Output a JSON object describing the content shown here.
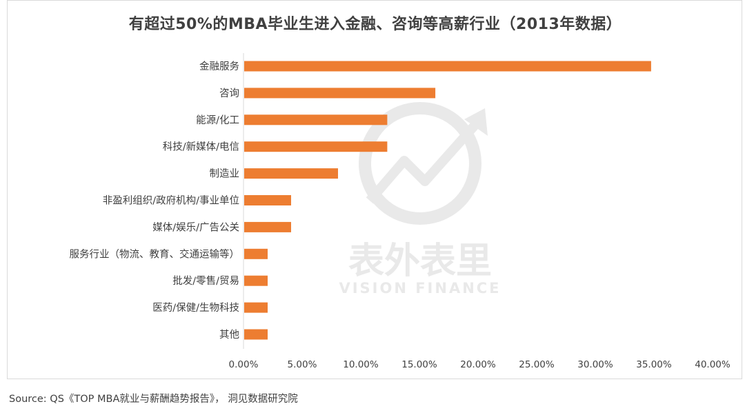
{
  "title": "有超过50%的MBA毕业生进入金融、咨询等高薪行业（2013年数据）",
  "source": "Source: QS《TOP MBA就业与薪酬趋势报告》， 洞见数据研究院",
  "watermark": {
    "main_text": "表外表里",
    "sub_text": "VISION FINANCE",
    "icon": "rising-arrow-logo-icon"
  },
  "colors": {
    "bar": "#ED7D31",
    "text": "#404040",
    "axis": "#d9d9d9",
    "watermark": "#e9e9e9"
  },
  "chart_data": {
    "type": "bar",
    "orientation": "horizontal",
    "title": "有超过50%的MBA毕业生进入金融、咨询等高薪行业（2013年数据）",
    "categories": [
      "金融服务",
      "咨询",
      "能源/化工",
      "科技/新媒体/电信",
      "制造业",
      "非盈利组织/政府机构/事业单位",
      "媒体/娱乐/广告公关",
      "服务行业（物流、教育、交通运输等）",
      "批发/零售/贸易",
      "医药/保健/生物科技",
      "其他"
    ],
    "values": [
      34.7,
      16.3,
      12.2,
      12.2,
      8.0,
      4.0,
      4.0,
      2.0,
      2.0,
      2.0,
      2.0
    ],
    "unit": "%",
    "xlim": [
      0,
      40
    ],
    "xticks": [
      "0.00%",
      "5.00%",
      "10.00%",
      "15.00%",
      "20.00%",
      "25.00%",
      "30.00%",
      "35.00%",
      "40.00%"
    ],
    "xlabel": "",
    "ylabel": "",
    "grid": false,
    "legend": "none"
  }
}
